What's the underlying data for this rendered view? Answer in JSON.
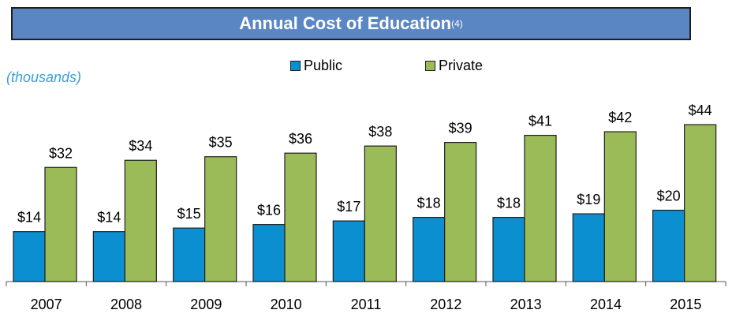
{
  "title": {
    "text": "Annual Cost of Education",
    "superscript": "(4)",
    "background": "#5b86c4"
  },
  "unit_label": "(thousands)",
  "legend": {
    "public": "Public",
    "private": "Private"
  },
  "colors": {
    "public": "#0b8fd1",
    "private": "#9bbb59",
    "bar_border": "#1f1f1f",
    "unit_label": "#3a9fd8"
  },
  "chart_data": {
    "type": "bar",
    "title": "Annual Cost of Education",
    "ylabel": "(thousands)",
    "categories": [
      "2007",
      "2008",
      "2009",
      "2010",
      "2011",
      "2012",
      "2013",
      "2014",
      "2015"
    ],
    "series": [
      {
        "name": "Public",
        "values": [
          14,
          14,
          15,
          16,
          17,
          18,
          18,
          19,
          20
        ],
        "labels": [
          "$14",
          "$14",
          "$15",
          "$16",
          "$17",
          "$18",
          "$18",
          "$19",
          "$20"
        ]
      },
      {
        "name": "Private",
        "values": [
          32,
          34,
          35,
          36,
          38,
          39,
          41,
          42,
          44
        ],
        "labels": [
          "$32",
          "$34",
          "$35",
          "$36",
          "$38",
          "$39",
          "$41",
          "$42",
          "$44"
        ]
      }
    ],
    "ylim": [
      0,
      44
    ],
    "grid": false,
    "legend_position": "top-center"
  }
}
